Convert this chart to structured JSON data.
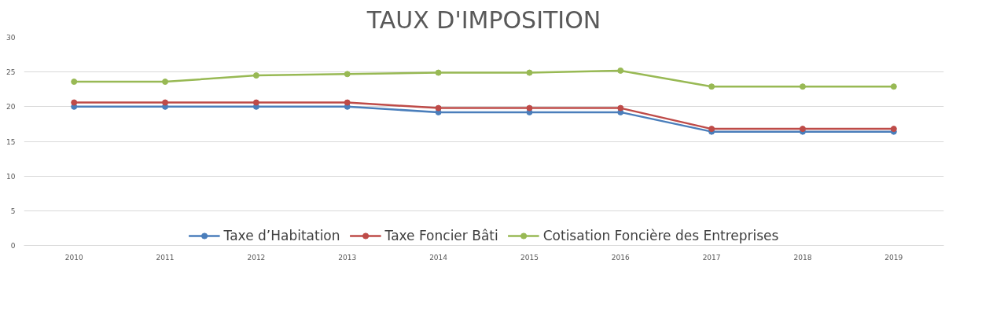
{
  "chart_data": {
    "type": "line",
    "title": "TAUX D'IMPOSITION",
    "categories": [
      "2010",
      "2011",
      "2012",
      "2013",
      "2014",
      "2015",
      "2016",
      "2017",
      "2018",
      "2019"
    ],
    "series": [
      {
        "name": "Taxe d’Habitation",
        "color": "#4a7ebb",
        "values": [
          20,
          20,
          20,
          20,
          19.2,
          19.2,
          19.2,
          16.4,
          16.4,
          16.4
        ]
      },
      {
        "name": "Taxe Foncier Bâti",
        "color": "#be4b48",
        "values": [
          20.6,
          20.6,
          20.6,
          20.6,
          19.8,
          19.8,
          19.8,
          16.8,
          16.8,
          16.8
        ]
      },
      {
        "name": "Cotisation Foncière des Entreprises",
        "color": "#98b954",
        "values": [
          23.6,
          23.6,
          24.5,
          24.7,
          24.9,
          24.9,
          25.2,
          22.9,
          22.9,
          22.9
        ]
      }
    ],
    "ylim": [
      0,
      30
    ],
    "yticks": [
      0,
      5,
      10,
      15,
      20,
      25,
      30
    ],
    "grid": "y",
    "legend": "bottom",
    "marker": "circle",
    "line_style": "solid"
  }
}
